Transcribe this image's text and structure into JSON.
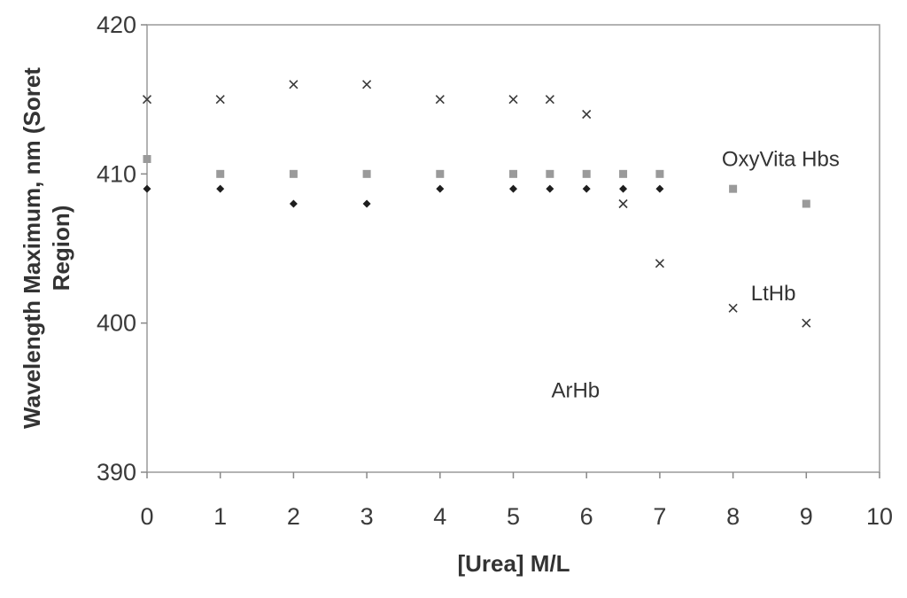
{
  "chart_data": {
    "type": "scatter",
    "title": "",
    "xlabel": "[Urea] M/L",
    "ylabel_lines": [
      "Wavelength Maximum, nm (Soret",
      "Region)"
    ],
    "xlim": [
      0,
      10
    ],
    "ylim": [
      390,
      420
    ],
    "x_ticks": [
      0,
      1,
      2,
      3,
      4,
      5,
      6,
      7,
      8,
      9,
      10
    ],
    "y_ticks": [
      390,
      400,
      410,
      420
    ],
    "grid": false,
    "legend": "none",
    "series": [
      {
        "marker": "cross",
        "color": "#3a3a3a",
        "points": [
          [
            0,
            415
          ],
          [
            1,
            415
          ],
          [
            2,
            416
          ],
          [
            3,
            416
          ],
          [
            4,
            415
          ],
          [
            5,
            415
          ],
          [
            5.5,
            415
          ],
          [
            6,
            414
          ],
          [
            6.5,
            408
          ],
          [
            7,
            404
          ],
          [
            8,
            401
          ],
          [
            9,
            400
          ]
        ]
      },
      {
        "marker": "square",
        "color": "#9a9a9a",
        "points": [
          [
            0,
            411
          ],
          [
            1,
            410
          ],
          [
            2,
            410
          ],
          [
            3,
            410
          ],
          [
            4,
            410
          ],
          [
            5,
            410
          ],
          [
            5.5,
            410
          ],
          [
            6,
            410
          ],
          [
            6.5,
            410
          ],
          [
            7,
            410
          ],
          [
            8,
            409
          ],
          [
            9,
            408
          ]
        ]
      },
      {
        "marker": "diamond",
        "color": "#1e1e1e",
        "points": [
          [
            0,
            409
          ],
          [
            1,
            409
          ],
          [
            2,
            408
          ],
          [
            3,
            408
          ],
          [
            4,
            409
          ],
          [
            5,
            409
          ],
          [
            5.5,
            409
          ],
          [
            6,
            409
          ],
          [
            6.5,
            409
          ],
          [
            7,
            409
          ]
        ]
      }
    ],
    "annotations": [
      {
        "text": "OxyVita Hbs",
        "x": 8.65,
        "y": 411
      },
      {
        "text": "LtHb",
        "x": 8.55,
        "y": 402
      },
      {
        "text": "ArHb",
        "x": 5.85,
        "y": 395.5
      }
    ]
  }
}
